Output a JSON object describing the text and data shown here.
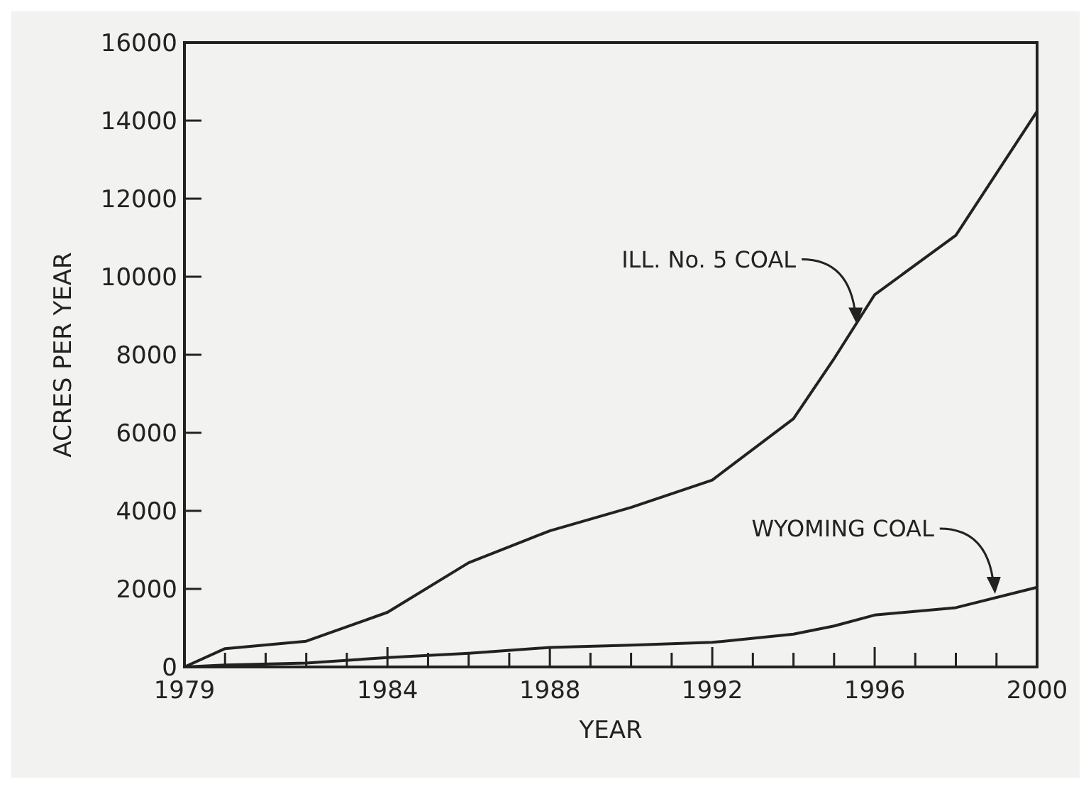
{
  "chart_data": {
    "type": "line",
    "xlabel": "YEAR",
    "ylabel": "ACRES PER YEAR",
    "x": [
      1979,
      1980,
      1982,
      1984,
      1986,
      1988,
      1990,
      1992,
      1994,
      1995,
      1996,
      1998,
      2000
    ],
    "series": [
      {
        "color": "#222222",
        "values": [
          0,
          470,
          660,
          1400,
          2670,
          3490,
          4090,
          4790,
          6360,
          7900,
          9540,
          11060,
          14240
        ]
      },
      {
        "color": "#222222",
        "values": [
          0,
          50,
          100,
          240,
          350,
          500,
          560,
          630,
          840,
          1050,
          1330,
          1520,
          2040
        ]
      }
    ],
    "xlim": [
      1979,
      2000
    ],
    "xticks": [
      1979,
      {
        "value": 1980,
        "label": null
      },
      {
        "value": 1981,
        "label": null
      },
      {
        "value": 1982,
        "label": null
      },
      {
        "value": 1983,
        "label": null
      },
      1984,
      {
        "value": 1985,
        "label": null
      },
      {
        "value": 1986,
        "label": null
      },
      {
        "value": 1987,
        "label": null
      },
      1988,
      {
        "value": 1989,
        "label": null
      },
      {
        "value": 1990,
        "label": null
      },
      {
        "value": 1991,
        "label": null
      },
      1992,
      {
        "value": 1993,
        "label": null
      },
      {
        "value": 1994,
        "label": null
      },
      {
        "value": 1995,
        "label": null
      },
      1996,
      {
        "value": 1997,
        "label": null
      },
      {
        "value": 1998,
        "label": null
      },
      {
        "value": 1999,
        "label": null
      },
      2000
    ],
    "ylim": [
      0,
      16000
    ],
    "yticks": [
      0,
      2000,
      4000,
      6000,
      8000,
      10000,
      12000,
      14000,
      16000
    ],
    "grid": false,
    "marker": "none",
    "line_style": "solid",
    "annotations": [
      {
        "text": "ILL. No. 5 COAL",
        "x": 1995.6,
        "y": 8700
      },
      {
        "text": "WYOMING COAL",
        "x": 1999,
        "y": 1800
      }
    ]
  }
}
